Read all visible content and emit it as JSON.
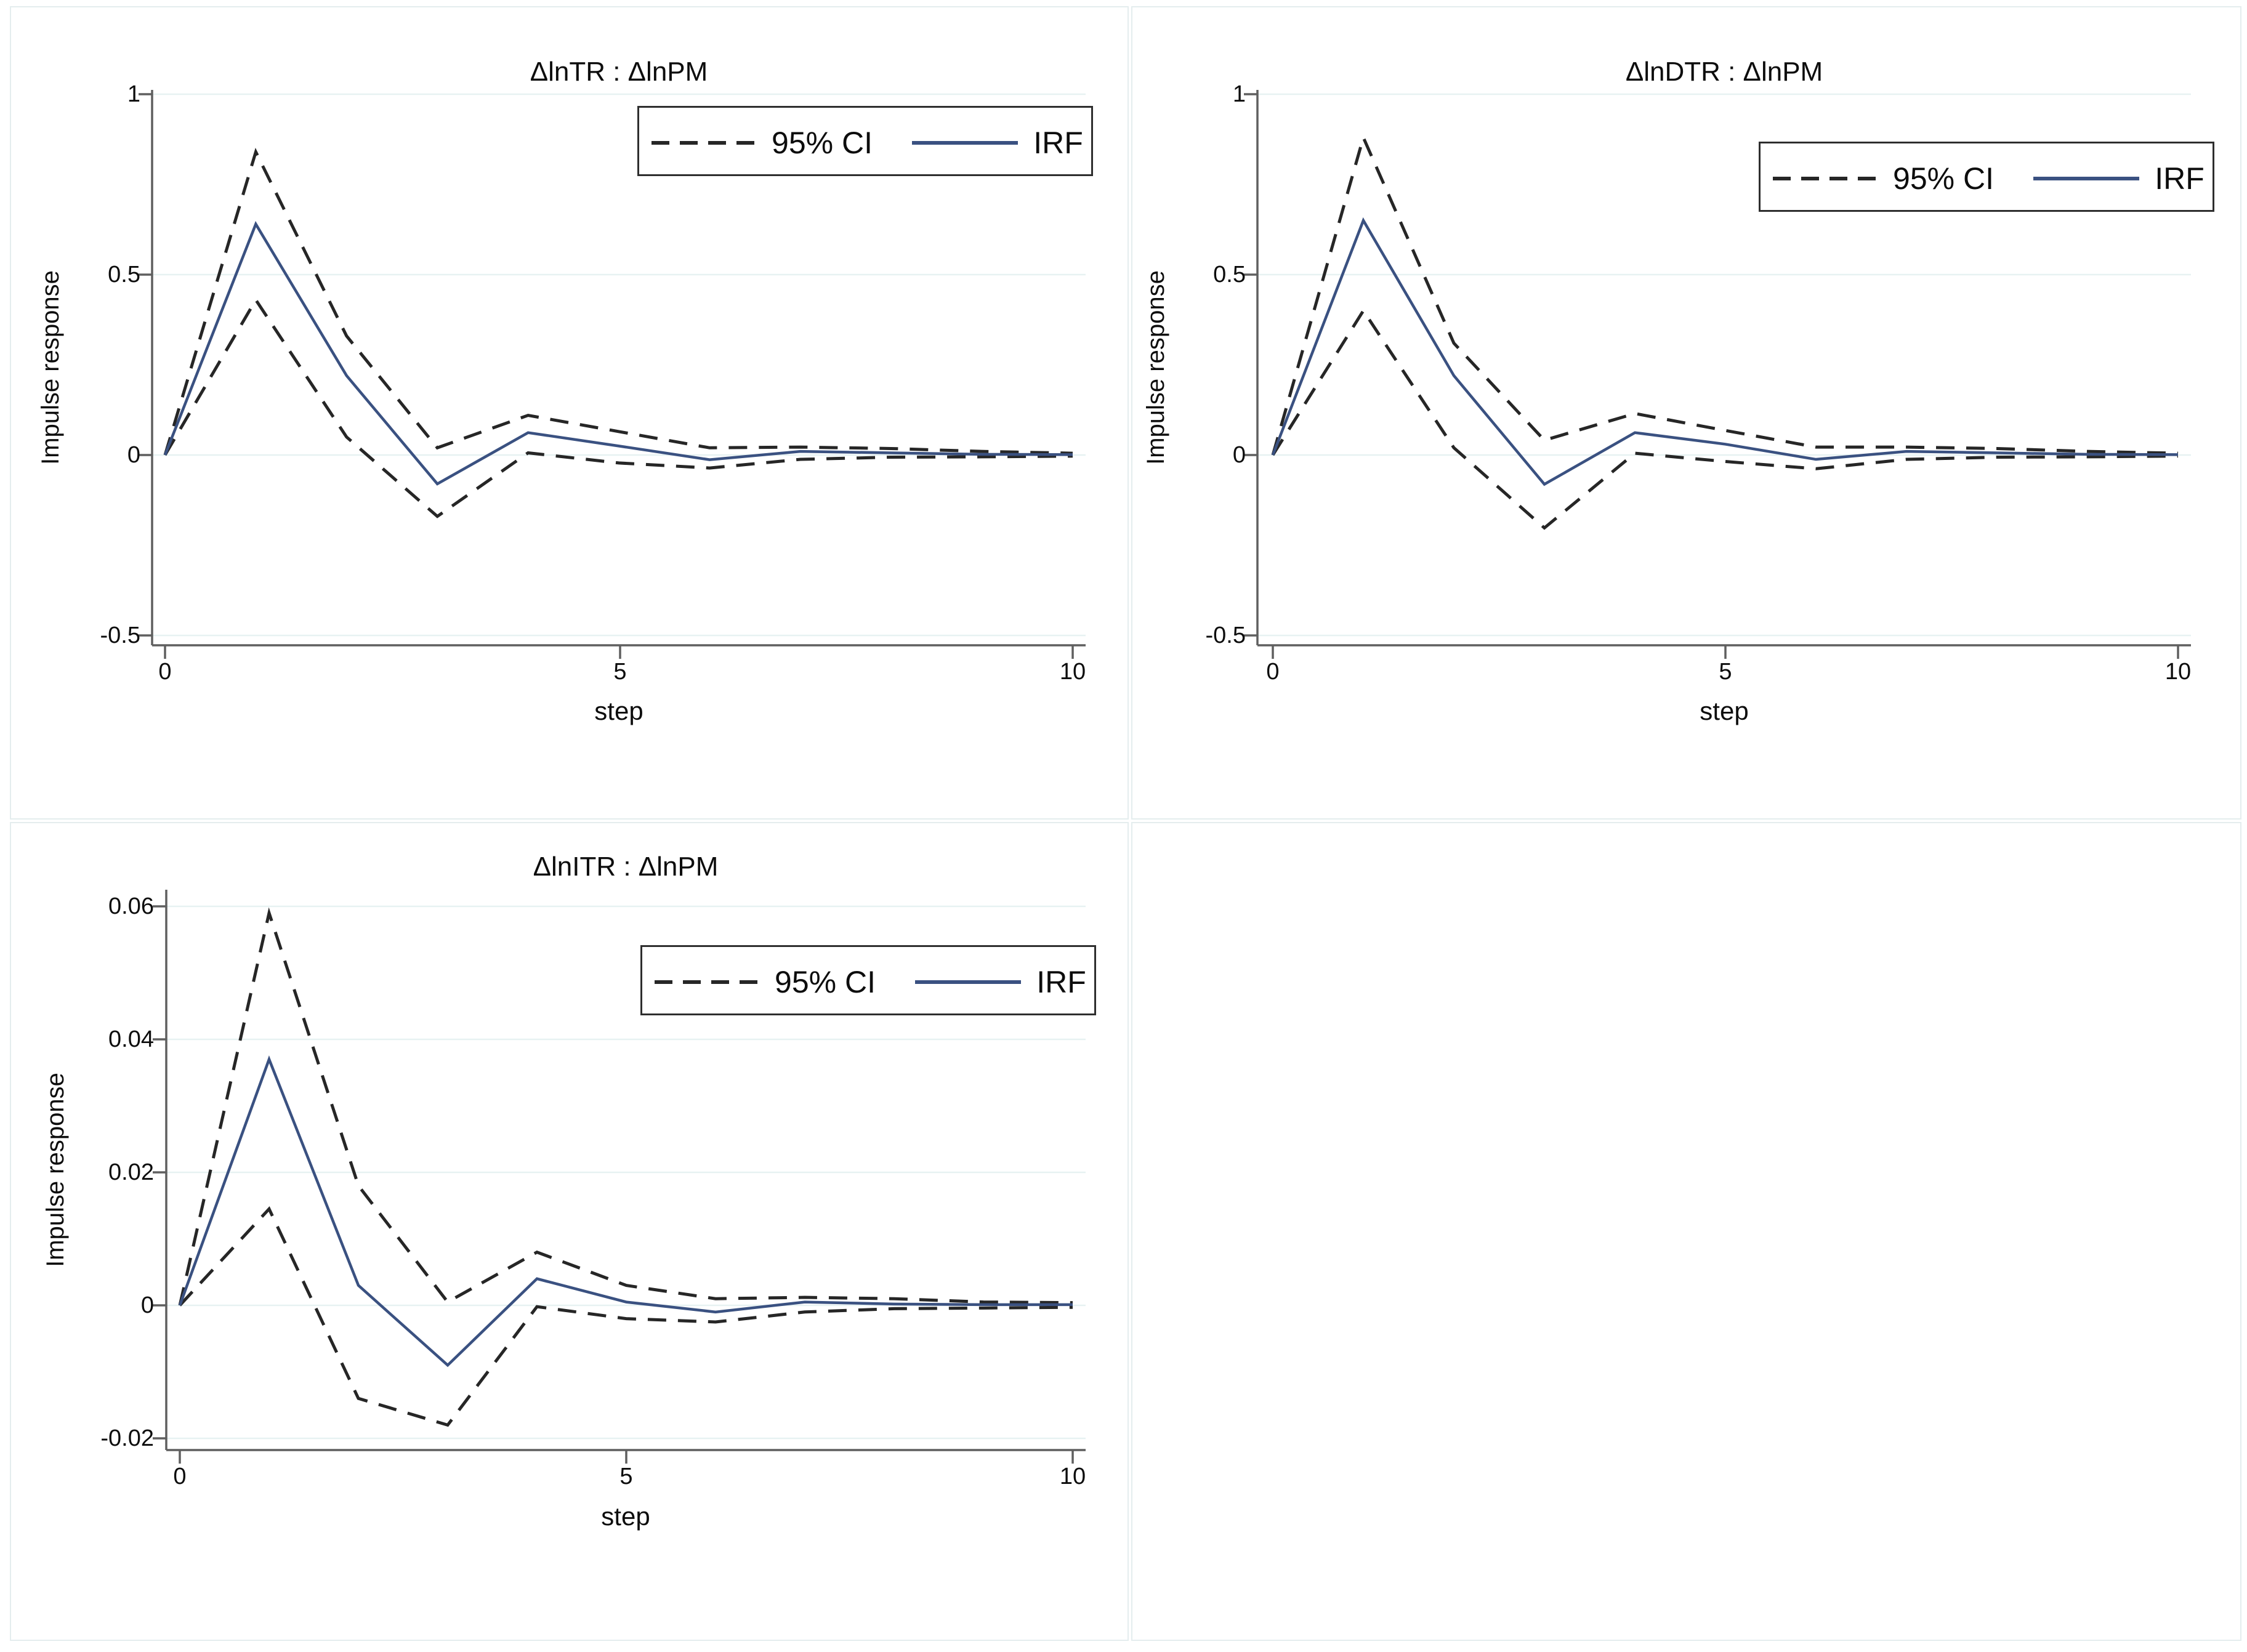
{
  "figure": {
    "background": "#ffffff",
    "panel_border_color": "#e4edee",
    "grid_color": "#e7f2f2",
    "axis_color": "#5f5f5f",
    "irf_color": "#3a5181",
    "ci_color": "#262626",
    "legend_border_color": "#2e2e2e",
    "text_color": "#0d0d0d"
  },
  "chart_data": [
    {
      "type": "line",
      "title": "ΔlnTR : ΔlnPM",
      "xlabel": "step",
      "ylabel": "Impulse response",
      "xlim": [
        0,
        10
      ],
      "ylim": [
        -0.5,
        1
      ],
      "grid": "horizontal",
      "x": [
        0,
        1,
        2,
        3,
        4,
        5,
        6,
        7,
        8,
        9,
        10
      ],
      "x_tick_labels": [
        "0",
        "5",
        "10"
      ],
      "y_tick_labels": [
        "1",
        "0.5",
        "0",
        "-0.5"
      ],
      "legend": {
        "ci_label": "95% CI",
        "irf_label": "IRF",
        "position": "top-right"
      },
      "series": [
        {
          "name": "95% CI upper",
          "role": "ci",
          "values": [
            0,
            0.84,
            0.33,
            0.02,
            0.11,
            0.065,
            0.02,
            0.022,
            0.018,
            0.01,
            0.005
          ]
        },
        {
          "name": "95% CI lower",
          "role": "ci",
          "values": [
            0,
            0.43,
            0.05,
            -0.17,
            0.006,
            -0.022,
            -0.036,
            -0.012,
            -0.006,
            -0.005,
            -0.003
          ]
        },
        {
          "name": "IRF",
          "role": "irf",
          "values": [
            0,
            0.64,
            0.22,
            -0.08,
            0.062,
            0.025,
            -0.013,
            0.01,
            0.006,
            0.002,
            0.001
          ]
        }
      ]
    },
    {
      "type": "line",
      "title": "ΔlnDTR : ΔlnPM",
      "xlabel": "step",
      "ylabel": "Impulse response",
      "xlim": [
        0,
        10
      ],
      "ylim": [
        -0.5,
        1
      ],
      "grid": "horizontal",
      "x": [
        0,
        1,
        2,
        3,
        4,
        5,
        6,
        7,
        8,
        9,
        10
      ],
      "x_tick_labels": [
        "0",
        "5",
        "10"
      ],
      "y_tick_labels": [
        "1",
        "0.5",
        "0",
        "-0.5"
      ],
      "legend": {
        "ci_label": "95% CI",
        "irf_label": "IRF",
        "position": "top-right"
      },
      "series": [
        {
          "name": "95% CI upper",
          "role": "ci",
          "values": [
            0,
            0.88,
            0.31,
            0.041,
            0.115,
            0.068,
            0.022,
            0.022,
            0.018,
            0.01,
            0.005
          ]
        },
        {
          "name": "95% CI lower",
          "role": "ci",
          "values": [
            0,
            0.4,
            0.02,
            -0.202,
            0.005,
            -0.018,
            -0.038,
            -0.012,
            -0.006,
            -0.005,
            -0.003
          ]
        },
        {
          "name": "IRF",
          "role": "irf",
          "values": [
            0,
            0.65,
            0.22,
            -0.081,
            0.062,
            0.03,
            -0.012,
            0.01,
            0.006,
            0.002,
            0.001
          ]
        }
      ]
    },
    {
      "type": "line",
      "title": "ΔlnITR : ΔlnPM",
      "xlabel": "step",
      "ylabel": "Impulse response",
      "xlim": [
        0,
        10
      ],
      "ylim": [
        -0.02,
        0.06
      ],
      "grid": "horizontal",
      "x": [
        0,
        1,
        2,
        3,
        4,
        5,
        6,
        7,
        8,
        9,
        10
      ],
      "x_tick_labels": [
        "0",
        "5",
        "10"
      ],
      "y_tick_labels": [
        "0.06",
        "0.04",
        "0.02",
        "0",
        "-0.02"
      ],
      "legend": {
        "ci_label": "95% CI",
        "irf_label": "IRF",
        "position": "top-right"
      },
      "series": [
        {
          "name": "95% CI upper",
          "role": "ci",
          "values": [
            0,
            0.059,
            0.018,
            0.0005,
            0.008,
            0.003,
            0.001,
            0.0012,
            0.001,
            0.0005,
            0.0004
          ]
        },
        {
          "name": "95% CI lower",
          "role": "ci",
          "values": [
            0,
            0.0145,
            -0.014,
            -0.018,
            -0.0002,
            -0.002,
            -0.0025,
            -0.001,
            -0.0005,
            -0.0004,
            -0.0003
          ]
        },
        {
          "name": "IRF",
          "role": "irf",
          "values": [
            0,
            0.037,
            0.003,
            -0.009,
            0.004,
            0.0005,
            -0.001,
            0.0005,
            0.0002,
            0.0001,
            0.0001
          ]
        }
      ]
    }
  ]
}
